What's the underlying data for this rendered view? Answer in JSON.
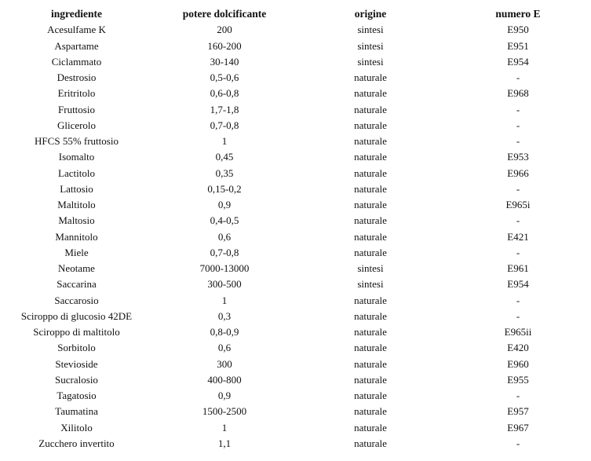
{
  "table": {
    "headers": [
      "ingrediente",
      "potere dolcificante",
      "origine",
      "numero E"
    ],
    "rows": [
      [
        "Acesulfame K",
        "200",
        "sintesi",
        "E950"
      ],
      [
        "Aspartame",
        "160-200",
        "sintesi",
        "E951"
      ],
      [
        "Ciclammato",
        "30-140",
        "sintesi",
        "E954"
      ],
      [
        "Destrosio",
        "0,5-0,6",
        "naturale",
        "-"
      ],
      [
        "Eritritolo",
        "0,6-0,8",
        "naturale",
        "E968"
      ],
      [
        "Fruttosio",
        "1,7-1,8",
        "naturale",
        "-"
      ],
      [
        "Glicerolo",
        "0,7-0,8",
        "naturale",
        "-"
      ],
      [
        "HFCS 55% fruttosio",
        "1",
        "naturale",
        "-"
      ],
      [
        "Isomalto",
        "0,45",
        "naturale",
        "E953"
      ],
      [
        "Lactitolo",
        "0,35",
        "naturale",
        "E966"
      ],
      [
        "Lattosio",
        "0,15-0,2",
        "naturale",
        "-"
      ],
      [
        "Maltitolo",
        "0,9",
        "naturale",
        "E965i"
      ],
      [
        "Maltosio",
        "0,4-0,5",
        "naturale",
        "-"
      ],
      [
        "Mannitolo",
        "0,6",
        "naturale",
        "E421"
      ],
      [
        "Miele",
        "0,7-0,8",
        "naturale",
        "-"
      ],
      [
        "Neotame",
        "7000-13000",
        "sintesi",
        "E961"
      ],
      [
        "Saccarina",
        "300-500",
        "sintesi",
        "E954"
      ],
      [
        "Saccarosio",
        "1",
        "naturale",
        "-"
      ],
      [
        "Sciroppo di glucosio 42DE",
        "0,3",
        "naturale",
        "-"
      ],
      [
        "Sciroppo di maltitolo",
        "0,8-0,9",
        "naturale",
        "E965ii"
      ],
      [
        "Sorbitolo",
        "0,6",
        "naturale",
        "E420"
      ],
      [
        "Stevioside",
        "300",
        "naturale",
        "E960"
      ],
      [
        "Sucralosio",
        "400-800",
        "naturale",
        "E955"
      ],
      [
        "Tagatosio",
        "0,9",
        "naturale",
        "-"
      ],
      [
        "Taumatina",
        "1500-2500",
        "naturale",
        "E957"
      ],
      [
        "Xilitolo",
        "1",
        "naturale",
        "E967"
      ],
      [
        "Zucchero invertito",
        "1,1",
        "naturale",
        "-"
      ]
    ]
  }
}
